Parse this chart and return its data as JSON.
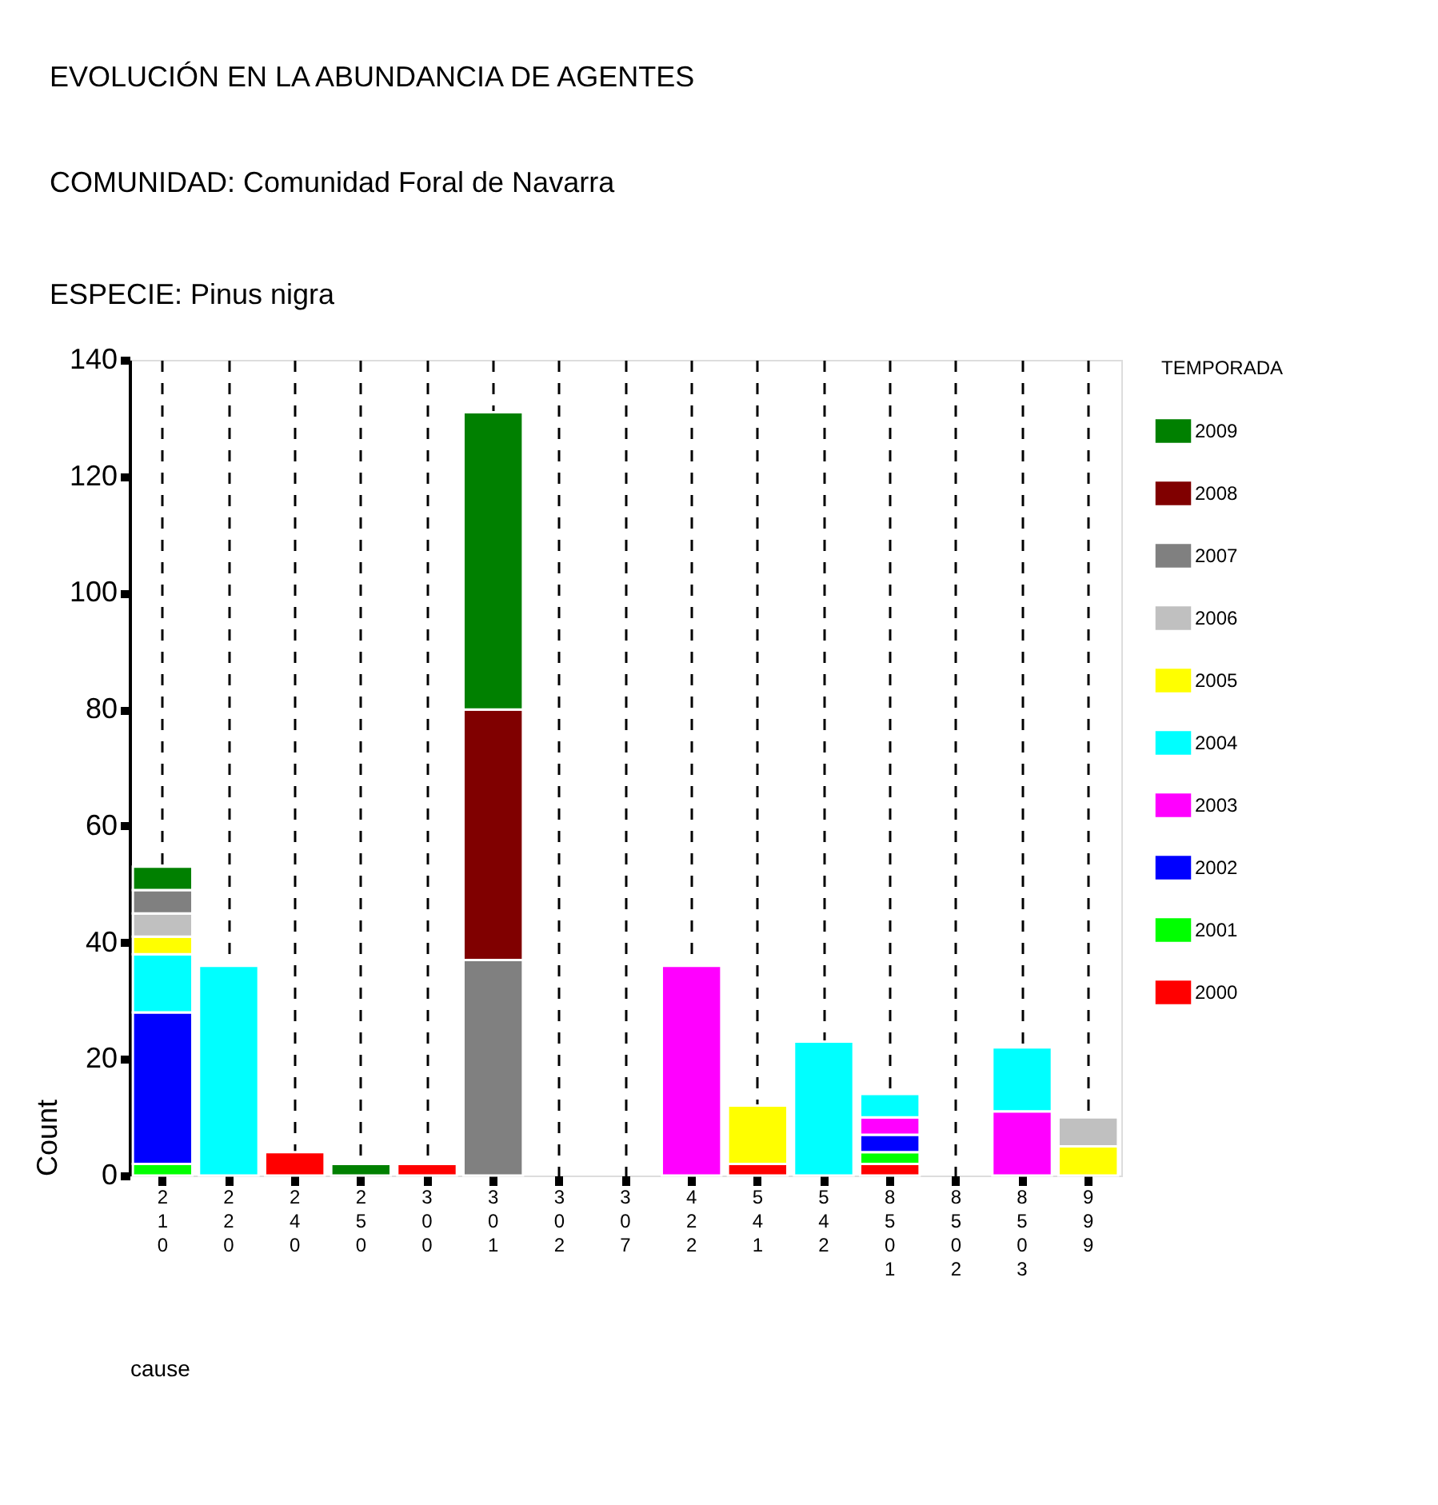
{
  "chart_data": {
    "type": "bar",
    "stacked": true,
    "title": "EVOLUCIÓN EN LA ABUNDANCIA DE AGENTES",
    "subtitle": [
      "COMUNIDAD: Comunidad Foral de Navarra",
      "ESPECIE:  Pinus nigra"
    ],
    "xlabel": "cause",
    "ylabel": "Count",
    "legend_title": "TEMPORADA",
    "legend": "right",
    "grid": "x",
    "categories": [
      "210",
      "220",
      "240",
      "250",
      "300",
      "301",
      "302",
      "307",
      "422",
      "541",
      "542",
      "8501",
      "8502",
      "8503",
      "999"
    ],
    "ylim": [
      0,
      140
    ],
    "yticks": [
      0,
      20,
      40,
      60,
      80,
      100,
      120,
      140
    ],
    "series": [
      {
        "name": "2000",
        "color": "#ff0000",
        "values": [
          null,
          null,
          4,
          null,
          2,
          null,
          null,
          null,
          null,
          2,
          null,
          2,
          null,
          null,
          null
        ]
      },
      {
        "name": "2001",
        "color": "#00ff00",
        "values": [
          2,
          null,
          null,
          null,
          null,
          null,
          null,
          null,
          null,
          null,
          null,
          2,
          null,
          null,
          null
        ]
      },
      {
        "name": "2002",
        "color": "#0000ff",
        "values": [
          26,
          null,
          null,
          null,
          null,
          null,
          null,
          null,
          null,
          null,
          null,
          3,
          null,
          null,
          null
        ]
      },
      {
        "name": "2003",
        "color": "#ff00ff",
        "values": [
          null,
          null,
          null,
          null,
          null,
          null,
          null,
          null,
          36,
          null,
          null,
          3,
          null,
          11,
          null
        ]
      },
      {
        "name": "2004",
        "color": "#00ffff",
        "values": [
          10,
          36,
          null,
          null,
          null,
          null,
          null,
          null,
          null,
          null,
          23,
          4,
          null,
          11,
          null
        ]
      },
      {
        "name": "2005",
        "color": "#ffff00",
        "values": [
          3,
          null,
          null,
          null,
          null,
          null,
          null,
          null,
          null,
          10,
          null,
          null,
          null,
          null,
          5
        ]
      },
      {
        "name": "2006",
        "color": "#c0c0c0",
        "values": [
          4,
          null,
          null,
          null,
          null,
          null,
          null,
          null,
          null,
          null,
          null,
          null,
          null,
          null,
          5
        ]
      },
      {
        "name": "2007",
        "color": "#808080",
        "values": [
          4,
          null,
          null,
          null,
          null,
          37,
          null,
          null,
          null,
          null,
          null,
          null,
          null,
          null,
          null
        ]
      },
      {
        "name": "2008",
        "color": "#800000",
        "values": [
          null,
          null,
          null,
          null,
          null,
          43,
          null,
          null,
          null,
          null,
          null,
          null,
          null,
          null,
          null
        ]
      },
      {
        "name": "2009",
        "color": "#008000",
        "values": [
          4,
          null,
          null,
          2,
          null,
          51,
          null,
          null,
          null,
          null,
          null,
          null,
          null,
          null,
          null
        ]
      }
    ]
  }
}
